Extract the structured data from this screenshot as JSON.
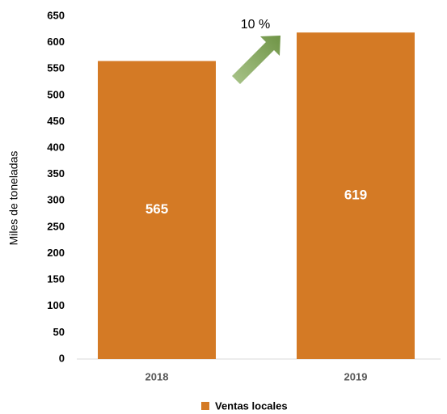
{
  "chart_data": {
    "type": "bar",
    "categories": [
      "2018",
      "2019"
    ],
    "series": [
      {
        "name": "Ventas locales",
        "color": "#d47a25",
        "values": [
          565,
          619
        ]
      }
    ],
    "ylabel": "Miles de toneladas",
    "annotation": "10 %",
    "ylim": [
      0,
      650
    ],
    "yticks": [
      0,
      50,
      100,
      150,
      200,
      250,
      300,
      350,
      400,
      450,
      500,
      550,
      600,
      650
    ],
    "grid": false,
    "legend": "bottom"
  }
}
